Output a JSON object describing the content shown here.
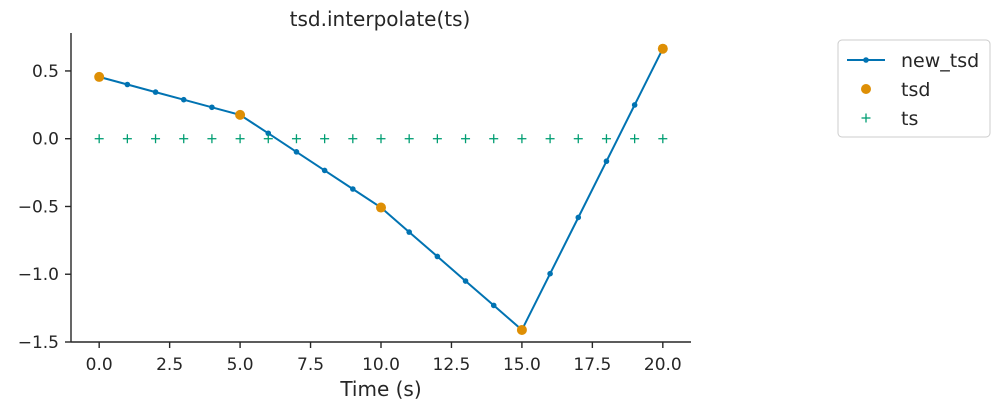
{
  "chart_data": {
    "type": "line",
    "title": "tsd.interpolate(ts)",
    "xlabel": "Time (s)",
    "ylabel": "",
    "xlim": [
      -1,
      21
    ],
    "ylim": [
      -1.5,
      0.78
    ],
    "xticks": [
      0,
      2.5,
      5,
      7.5,
      10,
      12.5,
      15,
      17.5,
      20
    ],
    "xtick_labels": [
      "0.0",
      "2.5",
      "5.0",
      "7.5",
      "10.0",
      "12.5",
      "15.0",
      "17.5",
      "20.0"
    ],
    "yticks": [
      0.5,
      0.0,
      -0.5,
      -1.0,
      -1.5
    ],
    "ytick_labels": [
      "0.5",
      "0.0",
      "−0.5",
      "−1.0",
      "−1.5"
    ],
    "grid": false,
    "legend_position": "outside-top-right",
    "series": [
      {
        "name": "new_tsd",
        "style": "line-with-dots",
        "color": "#0173b2",
        "x": [
          0,
          1,
          2,
          3,
          4,
          5,
          6,
          7,
          8,
          9,
          10,
          11,
          12,
          13,
          14,
          15,
          16,
          17,
          18,
          19,
          20
        ],
        "y": [
          0.456,
          0.4,
          0.344,
          0.288,
          0.232,
          0.176,
          0.04,
          -0.097,
          -0.234,
          -0.371,
          -0.508,
          -0.689,
          -0.869,
          -1.05,
          -1.23,
          -1.411,
          -0.996,
          -0.581,
          -0.166,
          0.249,
          0.664
        ]
      },
      {
        "name": "tsd",
        "style": "markers-circle",
        "color": "#de8f05",
        "x": [
          0,
          5,
          10,
          15,
          20
        ],
        "y": [
          0.456,
          0.176,
          -0.508,
          -1.411,
          0.664
        ]
      },
      {
        "name": "ts",
        "style": "markers-plus",
        "color": "#029e73",
        "x": [
          0,
          1,
          2,
          3,
          4,
          5,
          6,
          7,
          8,
          9,
          10,
          11,
          12,
          13,
          14,
          15,
          16,
          17,
          18,
          19,
          20
        ],
        "y": [
          0,
          0,
          0,
          0,
          0,
          0,
          0,
          0,
          0,
          0,
          0,
          0,
          0,
          0,
          0,
          0,
          0,
          0,
          0,
          0,
          0
        ]
      }
    ]
  }
}
